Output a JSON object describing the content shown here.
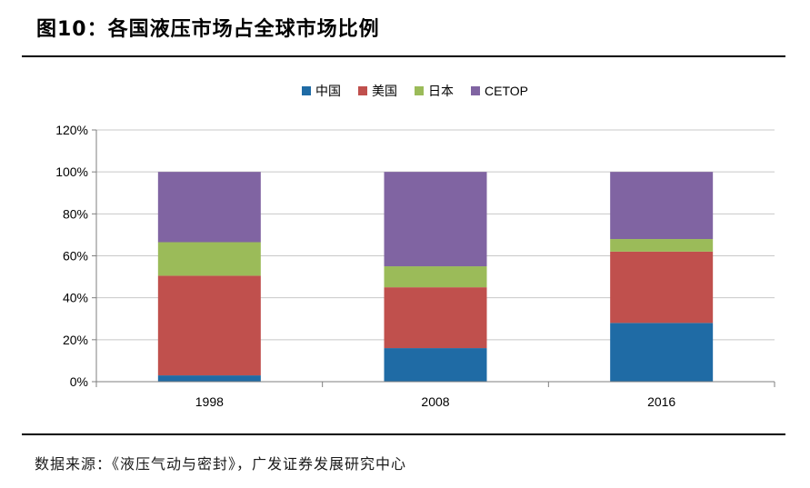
{
  "figure": {
    "title": "图10：各国液压市场占全球市场比例",
    "source": "数据来源：《液压气动与密封》，广发证券发展研究中心"
  },
  "chart_data": {
    "type": "bar",
    "stacked": true,
    "categories": [
      "1998",
      "2008",
      "2016"
    ],
    "series": [
      {
        "name": "中国",
        "color": "#1F6BA5",
        "values": [
          3,
          16,
          28
        ]
      },
      {
        "name": "美国",
        "color": "#C0504D",
        "values": [
          47.5,
          29,
          34
        ]
      },
      {
        "name": "日本",
        "color": "#9BBB59",
        "values": [
          16,
          10,
          6
        ]
      },
      {
        "name": "CETOP",
        "color": "#8064A2",
        "values": [
          33.5,
          45,
          32
        ]
      }
    ],
    "ylim": [
      0,
      120
    ],
    "yticks": [
      "0%",
      "20%",
      "40%",
      "60%",
      "80%",
      "100%",
      "120%"
    ],
    "ytick_values": [
      0,
      20,
      40,
      60,
      80,
      100,
      120
    ],
    "grid": true,
    "legend_position": "top-center",
    "title": "",
    "xlabel": "",
    "ylabel": ""
  }
}
